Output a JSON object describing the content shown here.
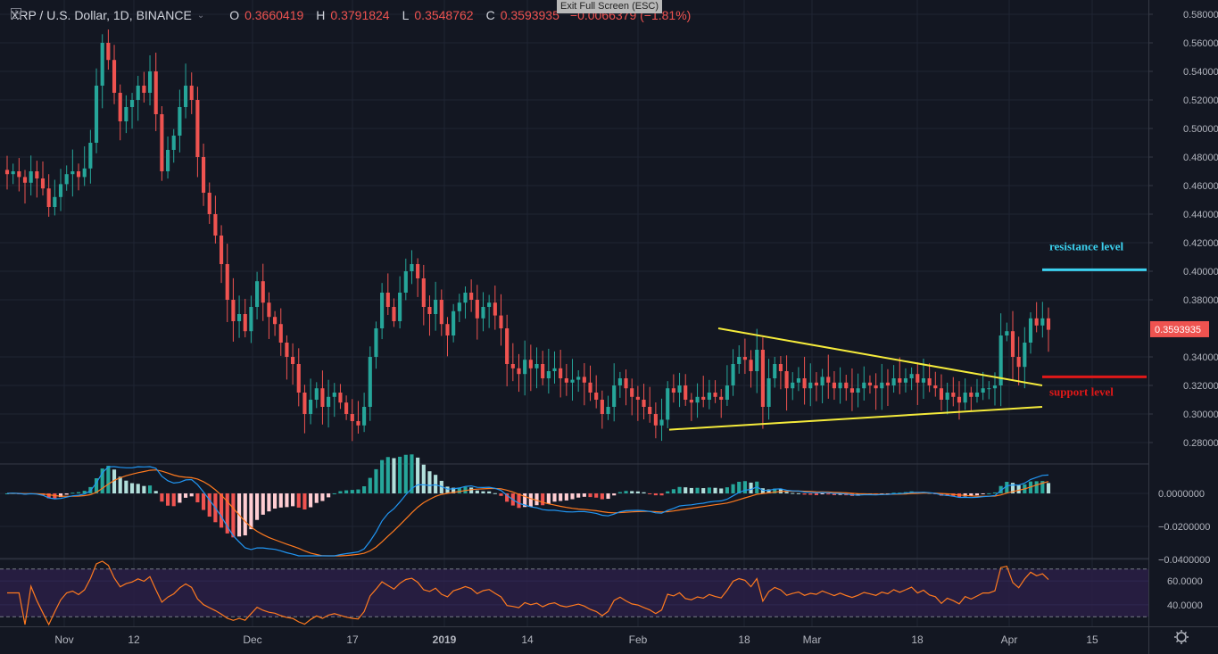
{
  "header": {
    "symbol": "XRP / U.S. Dollar, 1D, BINANCE",
    "open_label": "O",
    "open": "0.3660419",
    "high_label": "H",
    "high": "0.3791824",
    "low_label": "L",
    "low": "0.3548762",
    "close_label": "C",
    "close": "0.3593935",
    "change": "−0.0066379 (−1.81%)"
  },
  "tooltip": {
    "text": "Exit Full Screen (ESC)"
  },
  "colors": {
    "up": "#26a69a",
    "down": "#ef5350",
    "trend": "#f5eb3b",
    "resistance": "#3cd2f0",
    "support": "#e01818",
    "macd": "#2196f3",
    "signal": "#ff7a1f",
    "rsi": "#ff7a1f"
  },
  "chart_data": [
    {
      "type": "candlestick",
      "title": "XRP / U.S. Dollar, 1D, BINANCE",
      "ylim": [
        0.27,
        0.585
      ],
      "y_ticks": [
        "0.5800000",
        "0.5600000",
        "0.5400000",
        "0.5200000",
        "0.5000000",
        "0.4800000",
        "0.4600000",
        "0.4400000",
        "0.4200000",
        "0.4000000",
        "0.3800000",
        "0.3400000",
        "0.3200000",
        "0.3000000",
        "0.2800000"
      ],
      "last_price": "0.3593935",
      "x_ticks": [
        "Nov",
        "12",
        "Dec",
        "17",
        "2019",
        "14",
        "Feb",
        "18",
        "Mar",
        "18",
        "Apr",
        "15"
      ],
      "closes": [
        0.468,
        0.47,
        0.466,
        0.462,
        0.47,
        0.465,
        0.458,
        0.445,
        0.452,
        0.461,
        0.468,
        0.47,
        0.466,
        0.472,
        0.49,
        0.53,
        0.56,
        0.548,
        0.525,
        0.505,
        0.515,
        0.52,
        0.53,
        0.525,
        0.54,
        0.51,
        0.47,
        0.485,
        0.495,
        0.515,
        0.53,
        0.52,
        0.48,
        0.455,
        0.44,
        0.425,
        0.405,
        0.38,
        0.365,
        0.37,
        0.358,
        0.375,
        0.393,
        0.378,
        0.368,
        0.363,
        0.35,
        0.34,
        0.335,
        0.315,
        0.3,
        0.31,
        0.318,
        0.305,
        0.312,
        0.315,
        0.308,
        0.3,
        0.295,
        0.292,
        0.305,
        0.34,
        0.36,
        0.385,
        0.375,
        0.365,
        0.385,
        0.4,
        0.405,
        0.395,
        0.375,
        0.37,
        0.38,
        0.363,
        0.355,
        0.372,
        0.378,
        0.385,
        0.38,
        0.367,
        0.375,
        0.378,
        0.369,
        0.36,
        0.335,
        0.332,
        0.328,
        0.338,
        0.332,
        0.335,
        0.325,
        0.33,
        0.332,
        0.325,
        0.322,
        0.324,
        0.326,
        0.322,
        0.315,
        0.31,
        0.3,
        0.305,
        0.32,
        0.325,
        0.318,
        0.312,
        0.31,
        0.305,
        0.3,
        0.292,
        0.296,
        0.318,
        0.315,
        0.32,
        0.31,
        0.308,
        0.312,
        0.31,
        0.315,
        0.312,
        0.31,
        0.32,
        0.335,
        0.34,
        0.338,
        0.33,
        0.345,
        0.305,
        0.325,
        0.335,
        0.33,
        0.318,
        0.322,
        0.325,
        0.318,
        0.322,
        0.32,
        0.326,
        0.322,
        0.318,
        0.322,
        0.318,
        0.315,
        0.318,
        0.322,
        0.32,
        0.318,
        0.322,
        0.32,
        0.325,
        0.322,
        0.325,
        0.328,
        0.322,
        0.325,
        0.32,
        0.318,
        0.31,
        0.315,
        0.312,
        0.308,
        0.315,
        0.312,
        0.315,
        0.318,
        0.318,
        0.32,
        0.355,
        0.358,
        0.34,
        0.333,
        0.35,
        0.367,
        0.362,
        0.367,
        0.359
      ]
    },
    {
      "type": "macd",
      "y_ticks": [
        "0.0000000",
        "−0.0200000",
        "−0.0400000"
      ],
      "ylim": [
        -0.041,
        0.018
      ]
    },
    {
      "type": "rsi",
      "y_ticks": [
        "60.0000",
        "40.0000"
      ],
      "ylim": [
        25,
        75
      ],
      "bands": [
        70,
        30
      ]
    }
  ],
  "annotations": {
    "resistance_label": "resistance level",
    "support_label": "support level"
  }
}
